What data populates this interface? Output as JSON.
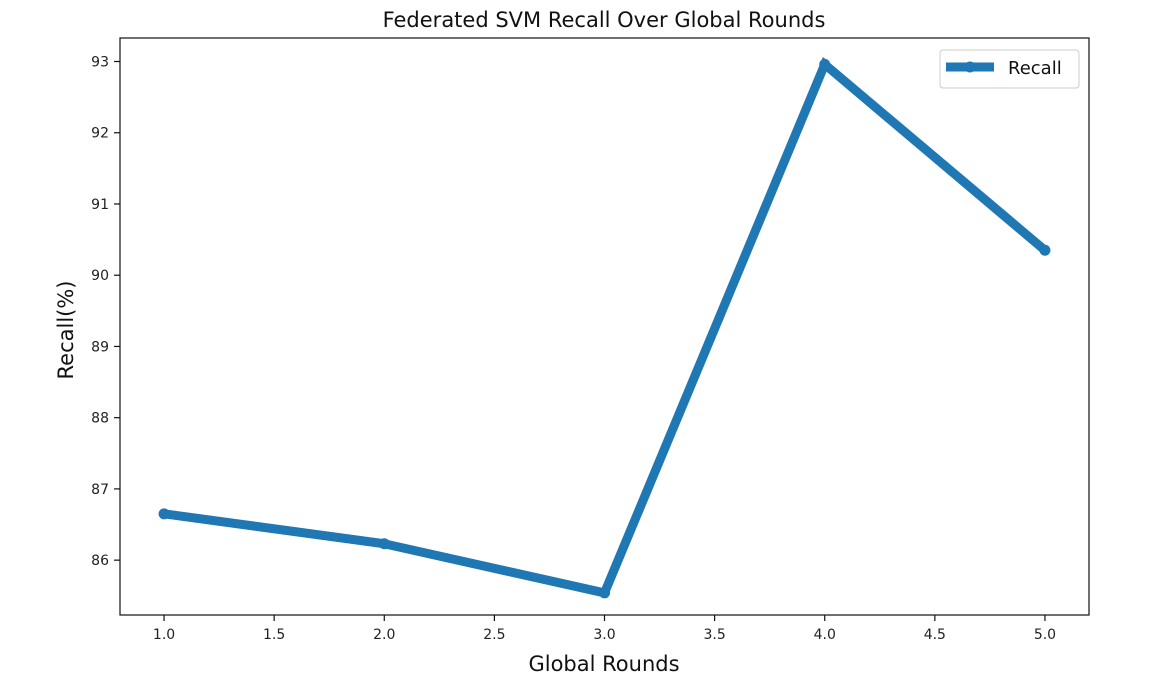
{
  "chart_data": {
    "type": "line",
    "title": "Federated SVM Recall Over Global Rounds",
    "xlabel": "Global Rounds",
    "ylabel": "Recall(%)",
    "x": [
      1,
      2,
      3,
      4,
      5
    ],
    "series": [
      {
        "name": "Recall",
        "values": [
          86.65,
          86.23,
          85.54,
          92.96,
          90.35
        ],
        "color": "#1f77b4"
      }
    ],
    "xlim": [
      0.8,
      5.2
    ],
    "ylim": [
      85.23,
      93.33
    ],
    "xticks": [
      1.0,
      1.5,
      2.0,
      2.5,
      3.0,
      3.5,
      4.0,
      4.5,
      5.0
    ],
    "xtick_labels": [
      "1.0",
      "1.5",
      "2.0",
      "2.5",
      "3.0",
      "3.5",
      "4.0",
      "4.5",
      "5.0"
    ],
    "yticks": [
      86,
      87,
      88,
      89,
      90,
      91,
      92,
      93
    ],
    "ytick_labels": [
      "86",
      "87",
      "88",
      "89",
      "90",
      "91",
      "92",
      "93"
    ],
    "grid": false,
    "legend": "top-right"
  }
}
